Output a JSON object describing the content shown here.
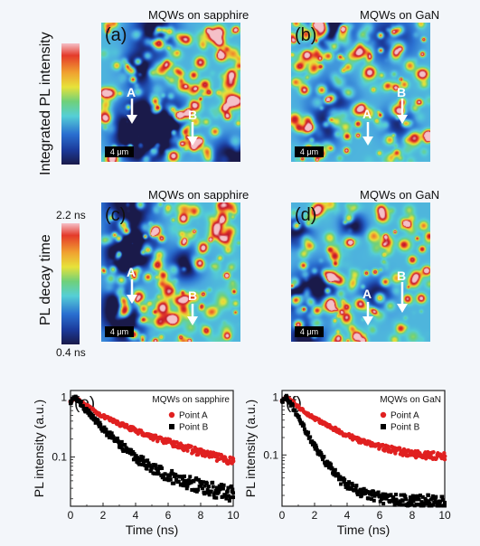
{
  "colorbars": {
    "intensity_label": "Integrated PL intensity",
    "decay_label": "PL decay time",
    "decay_max": "2.2 ns",
    "decay_min": "0.4 ns",
    "colors": [
      "#1a1a4a",
      "#1b3a9a",
      "#2a6fd0",
      "#4aa7e0",
      "#55cfd6",
      "#6fd07a",
      "#e7e23a",
      "#f0a030",
      "#e43a2a",
      "#c0182a",
      "#f5c0c8"
    ]
  },
  "maps": [
    {
      "label": "(a)",
      "title": "MQWs on sapphire",
      "scale": "4 μm",
      "arrows": [
        "A",
        "B"
      ]
    },
    {
      "label": "(b)",
      "title": "MQWs on GaN",
      "scale": "4 μm",
      "arrows": [
        "A",
        "B"
      ]
    },
    {
      "label": "(c)",
      "title": "MQWs on sapphire",
      "scale": "4 μm",
      "arrows": [
        "A",
        "B"
      ]
    },
    {
      "label": "(d)",
      "title": "MQWs on GaN",
      "scale": "4 μm",
      "arrows": [
        "A",
        "B"
      ]
    }
  ],
  "chart_data": [
    {
      "type": "scatter",
      "label": "(e)",
      "legend_title": "MQWs on sapphire",
      "xlabel": "Time (ns)",
      "ylabel": "PL intensity (a.u.)",
      "xlim": [
        0,
        10
      ],
      "xticks": [
        "0",
        "2",
        "4",
        "6",
        "8",
        "10"
      ],
      "ylim": [
        0.015,
        1.3
      ],
      "yscale": "log",
      "yticks": [
        {
          "value": 1,
          "label": "1"
        },
        {
          "value": 0.1,
          "label": "0.1"
        }
      ],
      "legend_position": "top-right",
      "series": [
        {
          "name": "Point A",
          "color": "#e02020",
          "x": [
            0,
            0.3,
            0.5,
            1,
            1.5,
            2,
            3,
            4,
            5,
            6,
            7,
            8,
            9,
            10
          ],
          "y": [
            0.85,
            1.0,
            0.92,
            0.72,
            0.58,
            0.48,
            0.36,
            0.28,
            0.22,
            0.18,
            0.145,
            0.12,
            0.1,
            0.085
          ]
        },
        {
          "name": "Point B",
          "color": "#000000",
          "x": [
            0,
            0.3,
            0.5,
            1,
            1.5,
            2,
            3,
            4,
            5,
            6,
            7,
            8,
            9,
            10
          ],
          "y": [
            0.85,
            1.0,
            0.88,
            0.6,
            0.42,
            0.3,
            0.17,
            0.1,
            0.068,
            0.05,
            0.04,
            0.033,
            0.028,
            0.025
          ]
        }
      ]
    },
    {
      "type": "scatter",
      "label": "(f)",
      "legend_title": "MQWs on GaN",
      "xlabel": "Time (ns)",
      "ylabel": "PL intensity (a.u.)",
      "xlim": [
        0,
        10
      ],
      "xticks": [
        "0",
        "2",
        "4",
        "6",
        "8",
        "10"
      ],
      "ylim": [
        0.013,
        1.3
      ],
      "yscale": "log",
      "yticks": [
        {
          "value": 1,
          "label": "1"
        },
        {
          "value": 0.1,
          "label": "0.1"
        }
      ],
      "legend_position": "top-right",
      "series": [
        {
          "name": "Point A",
          "color": "#e02020",
          "x": [
            0,
            0.3,
            0.5,
            1,
            1.5,
            2,
            3,
            4,
            5,
            6,
            7,
            8,
            9,
            10
          ],
          "y": [
            0.85,
            1.0,
            0.9,
            0.68,
            0.53,
            0.43,
            0.3,
            0.22,
            0.17,
            0.14,
            0.12,
            0.105,
            0.1,
            0.095
          ]
        },
        {
          "name": "Point B",
          "color": "#000000",
          "x": [
            0,
            0.3,
            0.5,
            1,
            1.5,
            2,
            2.5,
            3,
            3.5,
            4,
            5,
            6,
            7,
            8,
            9,
            10
          ],
          "y": [
            0.85,
            1.0,
            0.8,
            0.45,
            0.25,
            0.14,
            0.09,
            0.06,
            0.04,
            0.03,
            0.022,
            0.019,
            0.017,
            0.016,
            0.016,
            0.015
          ]
        }
      ]
    }
  ]
}
